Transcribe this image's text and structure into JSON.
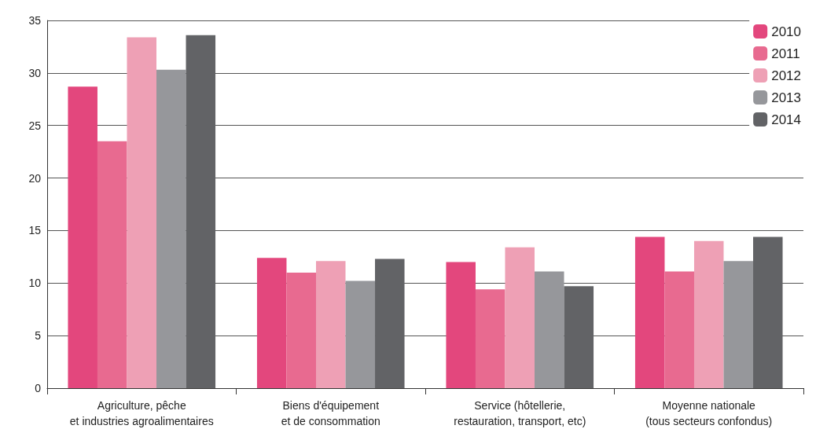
{
  "chart_data": {
    "type": "bar",
    "categories": [
      "Agriculture, pêche\net industries agroalimentaires",
      "Biens d'équipement\net de consommation",
      "Service (hôtellerie,\nrestauration, transport, etc)",
      "Moyenne nationale\n(tous secteurs confondus)"
    ],
    "series": [
      {
        "name": "2010",
        "color": "#e3477d",
        "values": [
          28.7,
          12.4,
          12.0,
          14.4
        ]
      },
      {
        "name": "2011",
        "color": "#e86a90",
        "values": [
          23.5,
          11.0,
          9.4,
          11.1
        ]
      },
      {
        "name": "2012",
        "color": "#eea0b5",
        "values": [
          33.4,
          12.1,
          13.4,
          14.0
        ]
      },
      {
        "name": "2013",
        "color": "#96979b",
        "values": [
          30.3,
          10.2,
          11.1,
          12.1
        ]
      },
      {
        "name": "2014",
        "color": "#626366",
        "values": [
          33.6,
          12.3,
          9.7,
          14.4
        ]
      }
    ],
    "ylim": [
      0,
      35
    ],
    "yticks": [
      0,
      5,
      10,
      15,
      20,
      25,
      30,
      35
    ],
    "grid": "y",
    "legend": "top right"
  }
}
